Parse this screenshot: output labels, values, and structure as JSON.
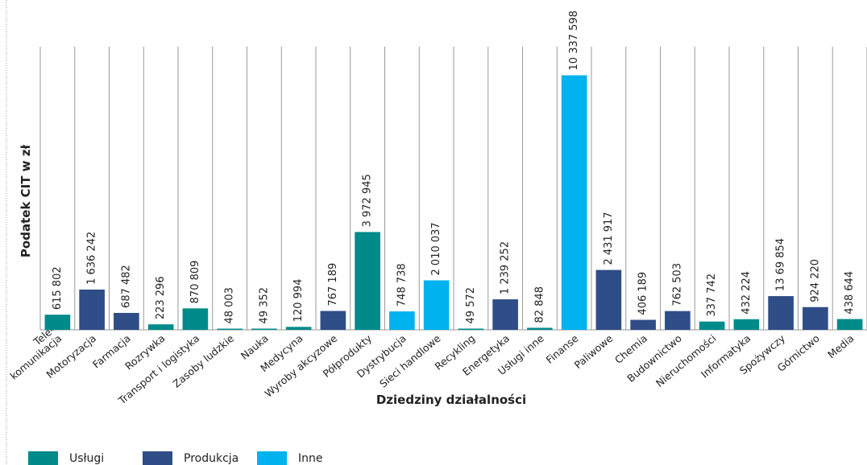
{
  "chart_data": {
    "type": "bar",
    "y_label": "Podatek CIT w zł",
    "x_label": "Dziedziny działalności",
    "categories": [
      "Tele-\nkomunikacja",
      "Motoryzacja",
      "Farmacja",
      "Rozrywka",
      "Transport i logistyka",
      "Zasoby ludzkie",
      "Nauka",
      "Medycyna",
      "Wyroby akcyzowe",
      "Półprodukty",
      "Dystrybucja",
      "Sieci handlowe",
      "Recykling",
      "Energetyka",
      "Usługi inne",
      "Finanse",
      "Paliwowe",
      "Chemia",
      "Budownictwo",
      "Nieruchomości",
      "Informatyka",
      "Spożywczy",
      "Górnictwo",
      "Media"
    ],
    "series": [
      {
        "name": "Usługi",
        "color": "#008b8b",
        "values": [
          615802,
          null,
          null,
          223296,
          870809,
          48003,
          49352,
          120994,
          null,
          3972945,
          null,
          null,
          49572,
          null,
          82848,
          null,
          null,
          null,
          null,
          337742,
          432224,
          null,
          null,
          438644
        ],
        "value_labels": [
          "615 802",
          null,
          null,
          "223 296",
          "870 809",
          "48 003",
          "49 352",
          "120 994",
          null,
          "3 972 945",
          null,
          null,
          "49 572",
          null,
          "82 848",
          null,
          null,
          null,
          null,
          "337 742",
          "432 224",
          null,
          null,
          "438 644"
        ]
      },
      {
        "name": "Produkcja",
        "color": "#2f4d87",
        "values": [
          null,
          1636242,
          687482,
          null,
          null,
          null,
          null,
          null,
          767189,
          null,
          null,
          null,
          null,
          1239252,
          null,
          null,
          2431917,
          406189,
          762503,
          null,
          null,
          1369854,
          924220,
          null
        ],
        "value_labels": [
          null,
          "1 636 242",
          "687 482",
          null,
          null,
          null,
          null,
          null,
          "767 189",
          null,
          null,
          null,
          null,
          "1 239 252",
          null,
          null,
          "2 431 917",
          "406 189",
          "762 503",
          null,
          null,
          "13 69 854",
          "924 220",
          null
        ]
      },
      {
        "name": "Inne",
        "color": "#00b2ee",
        "values": [
          null,
          null,
          null,
          null,
          null,
          null,
          null,
          null,
          null,
          null,
          748738,
          2010037,
          null,
          null,
          null,
          10337598,
          null,
          null,
          null,
          null,
          null,
          null,
          null,
          null
        ],
        "value_labels": [
          null,
          null,
          null,
          null,
          null,
          null,
          null,
          null,
          null,
          null,
          "748 738",
          "2 010 037",
          null,
          null,
          null,
          "10 337 598",
          null,
          null,
          null,
          null,
          null,
          null,
          null,
          null
        ]
      }
    ],
    "ylim": [
      0,
      11500000
    ]
  }
}
